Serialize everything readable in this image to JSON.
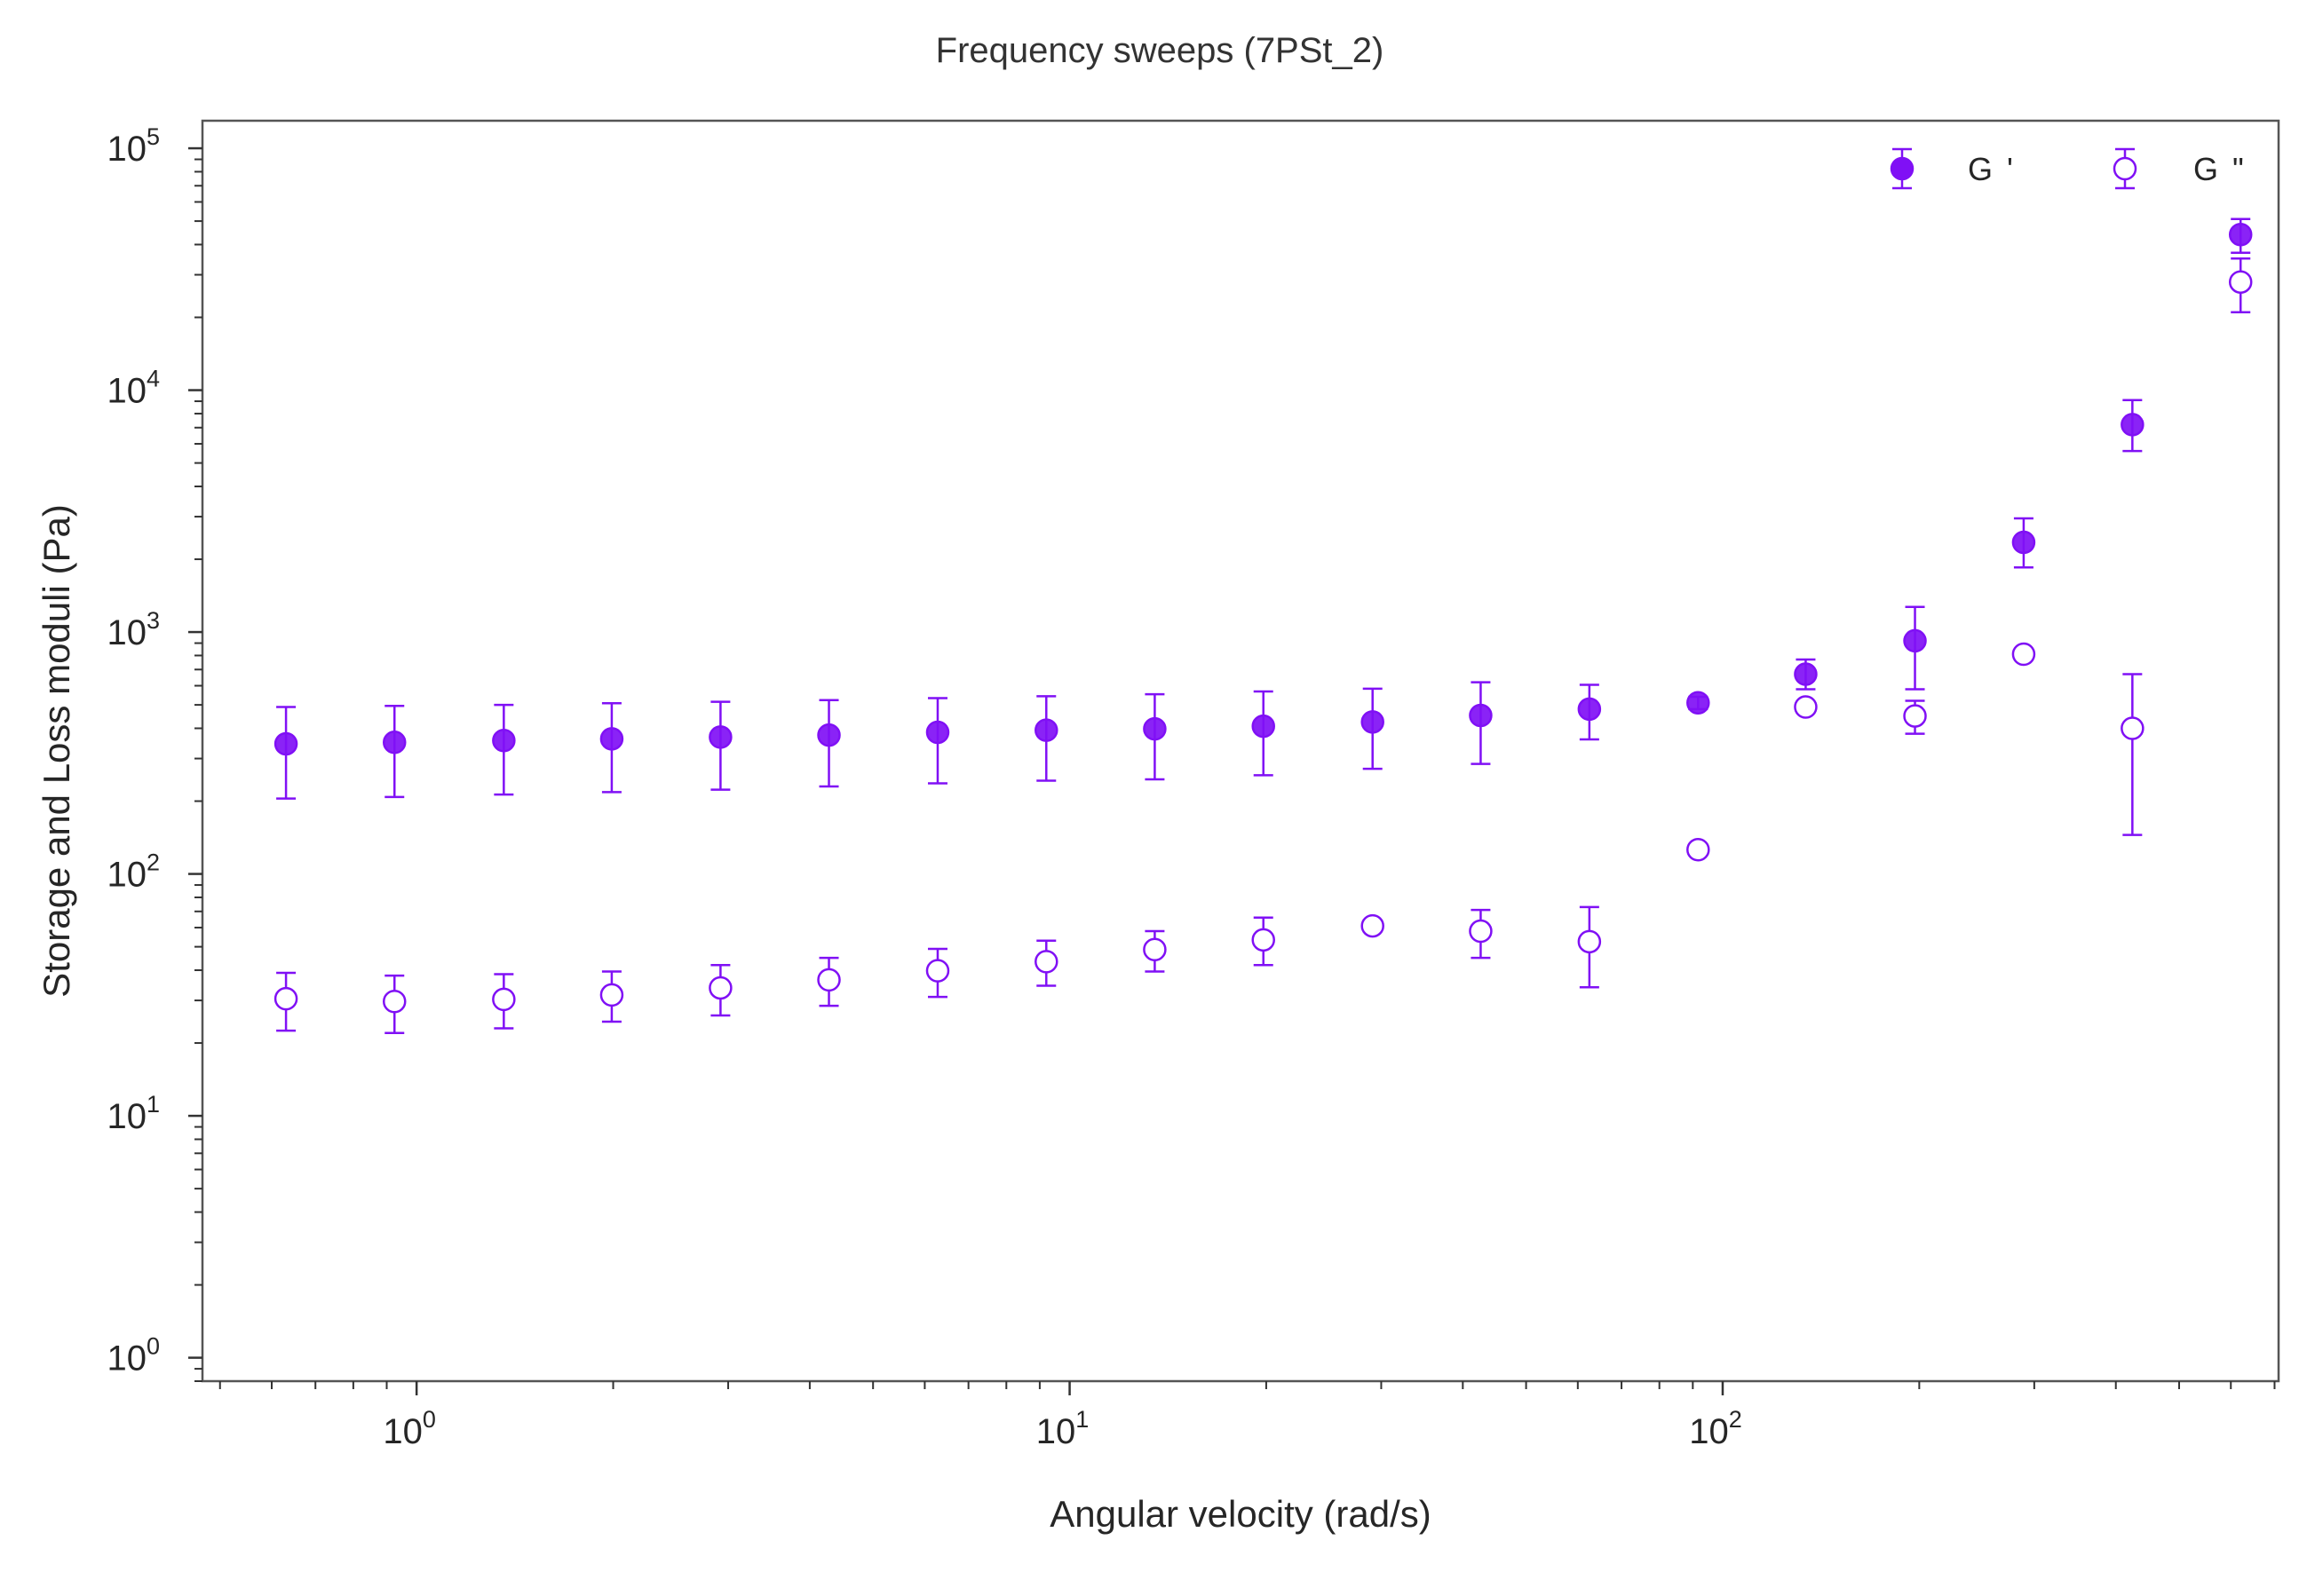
{
  "chart_data": {
    "type": "scatter",
    "title": "Frequency sweeps (7PSt_2)",
    "xlabel": "Angular velocity (rad/s)",
    "ylabel": "Storage and Loss moduli (Pa)",
    "xscale": "log",
    "yscale": "log",
    "xlim": [
      0.47,
      710
    ],
    "ylim": [
      0.8,
      130000
    ],
    "xticks": [
      1,
      10,
      100
    ],
    "yticks": [
      1,
      10,
      100,
      1000,
      10000,
      100000
    ],
    "grid": false,
    "legend_position": "top-right",
    "series": [
      {
        "name": "G '",
        "marker": "filled-circle",
        "color": "#8010f5",
        "x": [
          0.631,
          0.925,
          1.36,
          1.99,
          2.92,
          4.28,
          6.28,
          9.21,
          13.5,
          19.8,
          29.1,
          42.6,
          62.5,
          91.7,
          134,
          197,
          289,
          424,
          621
        ],
        "y": [
          345,
          350,
          356,
          362,
          368,
          375,
          385,
          393,
          398,
          408,
          425,
          452,
          480,
          510,
          670,
          920,
          2350,
          7200,
          44000
        ],
        "yerr_low": [
          205,
          208,
          213,
          218,
          223,
          230,
          237,
          243,
          246,
          256,
          272,
          285,
          360,
          480,
          580,
          580,
          1850,
          5600,
          37000
        ],
        "yerr_high": [
          490,
          495,
          500,
          508,
          515,
          523,
          533,
          543,
          553,
          568,
          583,
          620,
          605,
          540,
          770,
          1270,
          2950,
          9100,
          51000
        ]
      },
      {
        "name": "G \"",
        "marker": "open-circle",
        "color": "#8010f5",
        "x": [
          0.631,
          0.925,
          1.36,
          1.99,
          2.92,
          4.28,
          6.28,
          9.21,
          13.5,
          19.8,
          29.1,
          42.6,
          62.5,
          91.7,
          134,
          197,
          289,
          424,
          621
        ],
        "y": [
          30.5,
          29.7,
          30.3,
          31.6,
          33.8,
          36.5,
          39.8,
          43.4,
          48.7,
          53.4,
          61,
          58,
          52.5,
          126,
          490,
          450,
          810,
          400,
          28000
        ],
        "yerr_low": [
          22.5,
          22,
          23,
          24.5,
          26,
          28.5,
          31,
          34.5,
          39.5,
          42,
          null,
          45,
          34,
          null,
          null,
          380,
          null,
          145,
          21000
        ],
        "yerr_high": [
          39,
          38,
          38.5,
          39.5,
          42,
          45,
          49,
          53,
          58,
          66,
          null,
          71,
          73,
          null,
          null,
          520,
          null,
          670,
          35000
        ]
      }
    ]
  }
}
